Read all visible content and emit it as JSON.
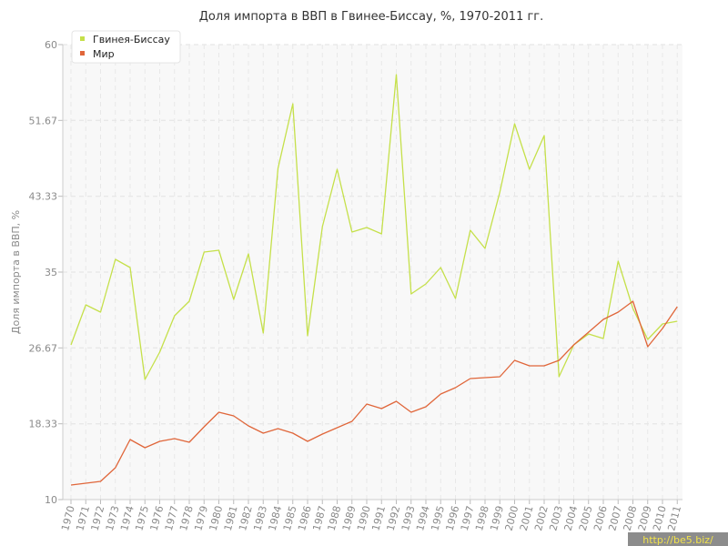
{
  "chart_data": {
    "type": "line",
    "title": "Доля импорта в ВВП в Гвинее-Биссау, %, 1970-2011 гг.",
    "ylabel": "Доля импорта в ВВП, %",
    "xlabel": "",
    "ylim": [
      10,
      60
    ],
    "yticks": [
      "10",
      "18.33",
      "26.67",
      "35",
      "43.33",
      "51.67",
      "60"
    ],
    "x": [
      "1970",
      "1971",
      "1972",
      "1973",
      "1974",
      "1975",
      "1976",
      "1977",
      "1978",
      "1979",
      "1980",
      "1981",
      "1982",
      "1983",
      "1984",
      "1985",
      "1986",
      "1987",
      "1988",
      "1989",
      "1990",
      "1991",
      "1992",
      "1993",
      "1994",
      "1995",
      "1996",
      "1997",
      "1998",
      "1999",
      "2000",
      "2001",
      "2002",
      "2003",
      "2004",
      "2005",
      "2006",
      "2007",
      "2008",
      "2009",
      "2010",
      "2011"
    ],
    "grid": true,
    "legend_position": "top-left",
    "series": [
      {
        "name": "Гвинея-Биссау",
        "color": "#c5e04a",
        "values": [
          27.0,
          31.4,
          30.6,
          36.4,
          35.5,
          23.2,
          26.2,
          30.2,
          31.8,
          37.2,
          37.4,
          32.0,
          37.0,
          28.3,
          46.4,
          53.5,
          28.0,
          40.0,
          46.3,
          39.4,
          39.9,
          39.2,
          56.7,
          32.6,
          33.7,
          35.5,
          32.1,
          39.6,
          37.6,
          43.8,
          51.3,
          46.3,
          50.0,
          23.5,
          27.0,
          28.2,
          27.7,
          36.2,
          31.0,
          27.6,
          29.3,
          29.6
        ]
      },
      {
        "name": "Мир",
        "color": "#e0663a",
        "values": [
          11.6,
          11.8,
          12.0,
          13.5,
          16.6,
          15.7,
          16.4,
          16.7,
          16.3,
          18.0,
          19.6,
          19.2,
          18.1,
          17.3,
          17.8,
          17.3,
          16.4,
          17.2,
          17.9,
          18.6,
          20.5,
          20.0,
          20.8,
          19.6,
          20.2,
          21.6,
          22.3,
          23.3,
          23.4,
          23.5,
          25.3,
          24.7,
          24.7,
          25.3,
          27.0,
          28.4,
          29.8,
          30.6,
          31.8,
          26.8,
          28.8,
          31.2
        ]
      }
    ]
  },
  "watermark": "http://be5.biz/"
}
